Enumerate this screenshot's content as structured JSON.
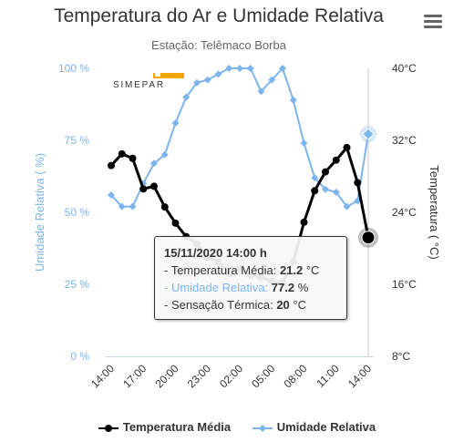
{
  "title": "Temperatura do Ar e Umidade Relativa",
  "subtitle": "Estação: Telêmaco Borba",
  "logo_text": "SIMEPAR",
  "colors": {
    "temperature": "#000000",
    "humidity": "#7cb5ec",
    "logo": "#f7a600"
  },
  "chart_data": {
    "type": "line",
    "categories": [
      "14:00",
      "15:00",
      "16:00",
      "17:00",
      "18:00",
      "19:00",
      "20:00",
      "21:00",
      "22:00",
      "23:00",
      "00:00",
      "01:00",
      "02:00",
      "03:00",
      "04:00",
      "05:00",
      "06:00",
      "07:00",
      "08:00",
      "09:00",
      "10:00",
      "11:00",
      "12:00",
      "13:00",
      "14:00"
    ],
    "x_tick_labels": [
      "14:00",
      "17:00",
      "20:00",
      "23:00",
      "02:00",
      "05:00",
      "08:00",
      "11:00",
      "14:00"
    ],
    "y_left": {
      "label": "Umidade Relativa ( %)",
      "min": 0,
      "max": 100,
      "ticks": [
        "0 %",
        "25 %",
        "50 %",
        "75 %",
        "100 %"
      ]
    },
    "y_right": {
      "label": "Temperatura ( °C)",
      "min": 8,
      "max": 40,
      "ticks": [
        "8°C",
        "16°C",
        "24°C",
        "32°C",
        "40°C"
      ]
    },
    "series": [
      {
        "name": "Temperatura Média",
        "axis": "right",
        "values": [
          29.2,
          30.5,
          30.0,
          26.6,
          26.9,
          24.6,
          22.8,
          21.3,
          20.5,
          19.0,
          18.5,
          17.2,
          17.8,
          17.0,
          16.8,
          16.3,
          16.2,
          18.5,
          22.9,
          26.4,
          28.5,
          29.8,
          31.2,
          27.3,
          21.2
        ]
      },
      {
        "name": "Umidade Relativa",
        "axis": "left",
        "values": [
          56,
          52,
          52,
          60,
          67,
          70,
          81,
          90,
          95,
          96,
          98,
          100,
          100,
          100,
          92,
          96,
          100,
          89,
          74,
          62,
          58,
          57,
          52,
          54,
          77.2
        ]
      }
    ],
    "grid": false,
    "legend": "bottom-center",
    "tooltip": {
      "title": "15/11/2020 14:00 h",
      "rows": [
        {
          "label": "- Temperatura Média: ",
          "value": "21.2",
          "unit": " °C"
        },
        {
          "label": "- Umidade Relativa: ",
          "value": "77.2",
          "unit": " %"
        },
        {
          "label": "- Sensação Térmica: ",
          "value": "20",
          "unit": " °C"
        }
      ]
    }
  }
}
